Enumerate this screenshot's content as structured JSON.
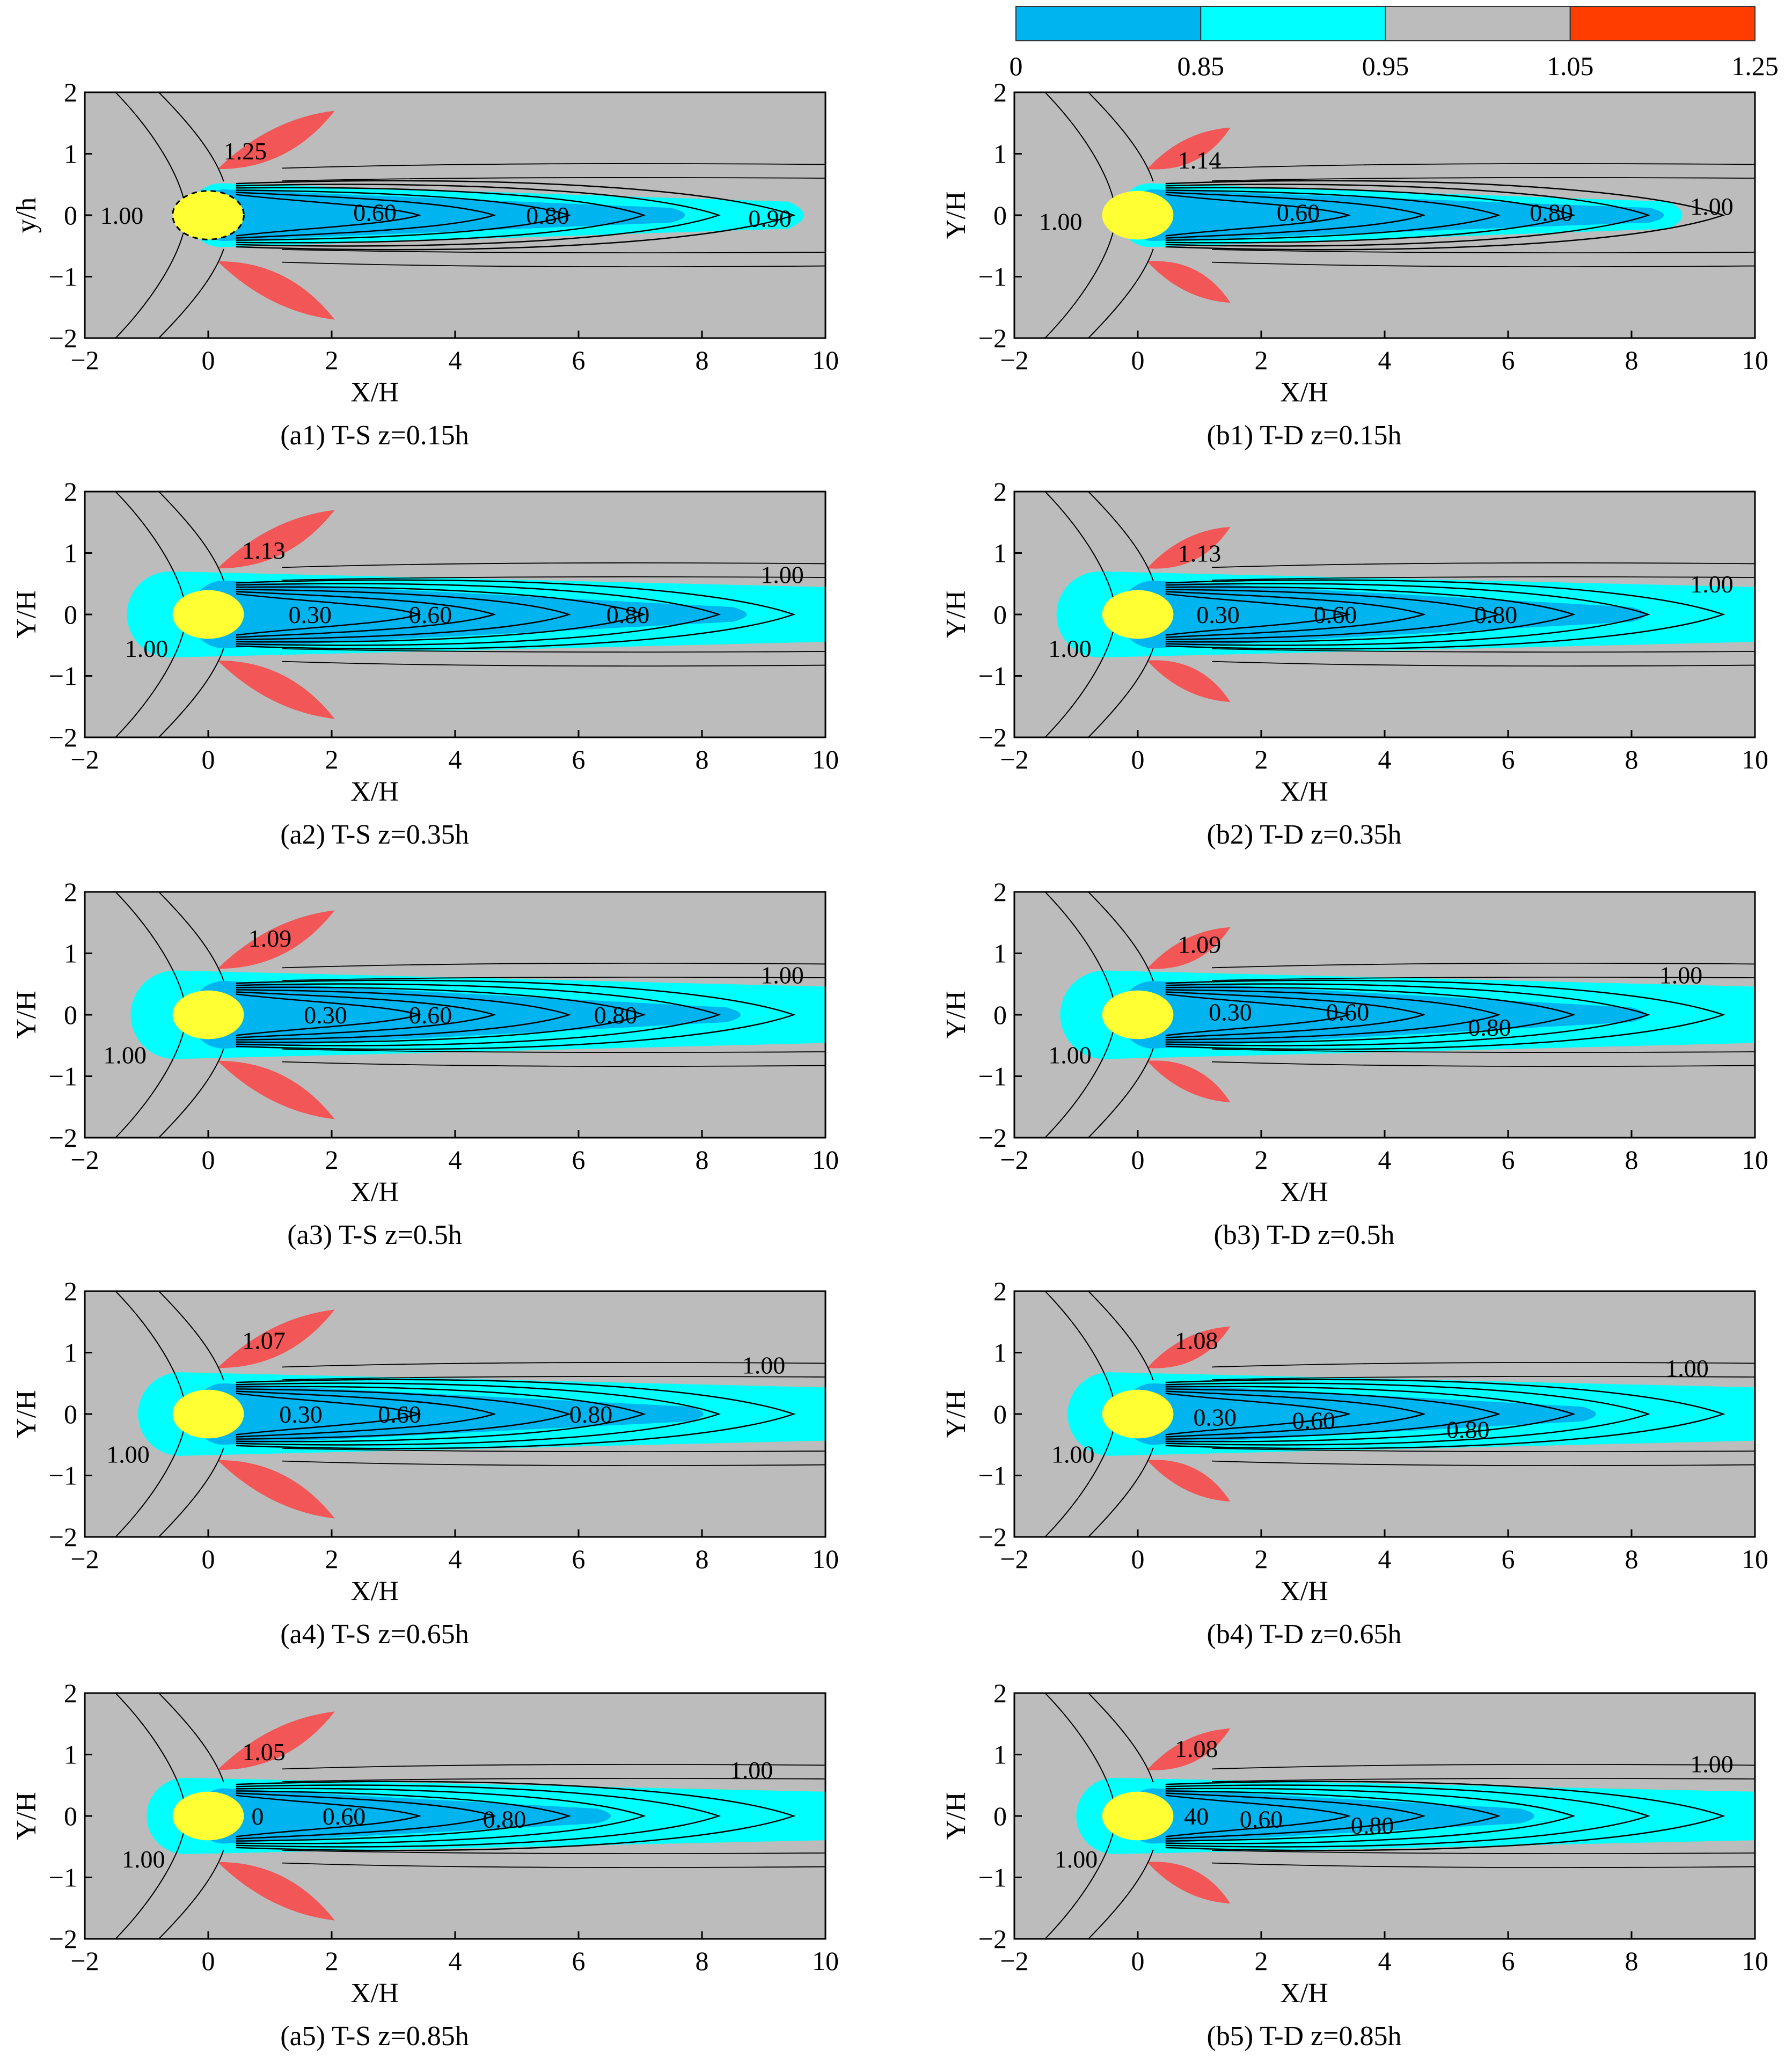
{
  "figure": {
    "colorbar": {
      "ticks": [
        "0",
        "0.85",
        "0.95",
        "1.05",
        "1.25"
      ],
      "bins": [
        {
          "from": 0,
          "to": 0.85,
          "color": "#00b4f0"
        },
        {
          "from": 0.85,
          "to": 0.95,
          "color": "#00ffff"
        },
        {
          "from": 0.95,
          "to": 1.05,
          "color": "#bcbcbc"
        },
        {
          "from": 1.05,
          "to": 1.25,
          "color": "#ff3d00"
        }
      ]
    },
    "colors": {
      "background": "#bcbcbc",
      "deficit_core": "#00b4f0",
      "deficit_edge": "#00ffff",
      "speedup": "#f25656",
      "cylinder": "#ffff33",
      "contour": "#000000"
    }
  },
  "chart_data": [
    {
      "type": "heatmap",
      "id": "a1",
      "title": "(a1) T-S z=0.15h",
      "xlabel": "X/H",
      "ylabel": "y/h",
      "xlim": [
        -2,
        10
      ],
      "ylim": [
        -2,
        2
      ],
      "xticks": [
        "-2",
        "0",
        "2",
        "4",
        "6",
        "8",
        "10"
      ],
      "yticks": [
        "2",
        "1",
        "0",
        "-1",
        "-2"
      ],
      "cylinder": {
        "x": 0,
        "y": 0,
        "radius": 0.55
      },
      "annotations": [
        {
          "text": "1.25",
          "x": 0.6,
          "y": 1.05
        },
        {
          "text": "1.00",
          "x": -1.4,
          "y": 0
        },
        {
          "text": "0.60",
          "x": 2.7,
          "y": 0.05
        },
        {
          "text": "0.80",
          "x": 5.5,
          "y": 0
        },
        {
          "text": "0.90",
          "x": 9.1,
          "y": -0.05
        }
      ]
    },
    {
      "type": "heatmap",
      "id": "b1",
      "title": "(b1) T-D z=0.15h",
      "xlabel": "X/H",
      "ylabel": "Y/H",
      "xlim": [
        -2,
        10
      ],
      "ylim": [
        -2,
        2
      ],
      "xticks": [
        "-2",
        "0",
        "2",
        "4",
        "6",
        "8",
        "10"
      ],
      "yticks": [
        "2",
        "1",
        "0",
        "-1",
        "-2"
      ],
      "cylinder": {
        "x": 0,
        "y": 0,
        "radius": 0.55
      },
      "annotations": [
        {
          "text": "1.14",
          "x": 1.0,
          "y": 0.9
        },
        {
          "text": "1.00",
          "x": -1.25,
          "y": -0.1
        },
        {
          "text": "0.60",
          "x": 2.6,
          "y": 0.05
        },
        {
          "text": "0.80",
          "x": 6.7,
          "y": 0.05
        },
        {
          "text": "1.00",
          "x": 9.3,
          "y": 0.15
        }
      ]
    },
    {
      "type": "heatmap",
      "id": "a2",
      "title": "(a2) T-S z=0.35h",
      "xlabel": "X/H",
      "ylabel": "Y/H",
      "xlim": [
        -2,
        10
      ],
      "ylim": [
        -2,
        2
      ],
      "xticks": [
        "-2",
        "0",
        "2",
        "4",
        "6",
        "8",
        "10"
      ],
      "yticks": [
        "2",
        "1",
        "0",
        "-1",
        "-2"
      ],
      "cylinder": {
        "x": 0,
        "y": 0,
        "radius": 0.55
      },
      "annotations": [
        {
          "text": "1.13",
          "x": 0.9,
          "y": 1.05
        },
        {
          "text": "1.00",
          "x": 9.3,
          "y": 0.65
        },
        {
          "text": "1.00",
          "x": -1.0,
          "y": -0.55
        },
        {
          "text": "0.30",
          "x": 1.65,
          "y": 0
        },
        {
          "text": "0.60",
          "x": 3.6,
          "y": 0
        },
        {
          "text": "0.80",
          "x": 6.8,
          "y": 0
        }
      ]
    },
    {
      "type": "heatmap",
      "id": "b2",
      "title": "(b2) T-D z=0.35h",
      "xlabel": "X/H",
      "ylabel": "Y/H",
      "xlim": [
        -2,
        10
      ],
      "ylim": [
        -2,
        2
      ],
      "xticks": [
        "-2",
        "0",
        "2",
        "4",
        "6",
        "8",
        "10"
      ],
      "yticks": [
        "2",
        "1",
        "0",
        "-1",
        "-2"
      ],
      "cylinder": {
        "x": 0,
        "y": 0,
        "radius": 0.55
      },
      "annotations": [
        {
          "text": "1.13",
          "x": 1.0,
          "y": 1.0
        },
        {
          "text": "1.00",
          "x": 9.3,
          "y": 0.5
        },
        {
          "text": "1.00",
          "x": -1.1,
          "y": -0.55
        },
        {
          "text": "0.30",
          "x": 1.3,
          "y": 0
        },
        {
          "text": "0.60",
          "x": 3.2,
          "y": 0
        },
        {
          "text": "0.80",
          "x": 5.8,
          "y": 0
        }
      ]
    },
    {
      "type": "heatmap",
      "id": "a3",
      "title": "(a3) T-S z=0.5h",
      "xlabel": "X/H",
      "ylabel": "Y/H",
      "xlim": [
        -2,
        10
      ],
      "ylim": [
        -2,
        2
      ],
      "xticks": [
        "-2",
        "0",
        "2",
        "4",
        "6",
        "8",
        "10"
      ],
      "yticks": [
        "2",
        "1",
        "0",
        "-1",
        "-2"
      ],
      "cylinder": {
        "x": 0,
        "y": 0,
        "radius": 0.55
      },
      "annotations": [
        {
          "text": "1.09",
          "x": 1.0,
          "y": 1.25
        },
        {
          "text": "1.00",
          "x": 9.3,
          "y": 0.65
        },
        {
          "text": "1.00",
          "x": -1.35,
          "y": -0.65
        },
        {
          "text": "0.30",
          "x": 1.9,
          "y": 0
        },
        {
          "text": "0.60",
          "x": 3.6,
          "y": 0
        },
        {
          "text": "0.80",
          "x": 6.6,
          "y": 0
        }
      ]
    },
    {
      "type": "heatmap",
      "id": "b3",
      "title": "(b3) T-D z=0.5h",
      "xlabel": "X/H",
      "ylabel": "Y/H",
      "xlim": [
        -2,
        10
      ],
      "ylim": [
        -2,
        2
      ],
      "xticks": [
        "-2",
        "0",
        "2",
        "4",
        "6",
        "8",
        "10"
      ],
      "yticks": [
        "2",
        "1",
        "0",
        "-1",
        "-2"
      ],
      "cylinder": {
        "x": 0,
        "y": 0,
        "radius": 0.55
      },
      "annotations": [
        {
          "text": "1.09",
          "x": 1.0,
          "y": 1.15
        },
        {
          "text": "1.00",
          "x": 8.8,
          "y": 0.65
        },
        {
          "text": "1.00",
          "x": -1.1,
          "y": -0.65
        },
        {
          "text": "0.30",
          "x": 1.5,
          "y": 0.05
        },
        {
          "text": "0.60",
          "x": 3.4,
          "y": 0.05
        },
        {
          "text": "0.80",
          "x": 5.7,
          "y": -0.2
        }
      ]
    },
    {
      "type": "heatmap",
      "id": "a4",
      "title": "(a4) T-S z=0.65h",
      "xlabel": "X/H",
      "ylabel": "Y/H",
      "xlim": [
        -2,
        10
      ],
      "ylim": [
        -2,
        2
      ],
      "xticks": [
        "-2",
        "0",
        "2",
        "4",
        "6",
        "8",
        "10"
      ],
      "yticks": [
        "2",
        "1",
        "0",
        "-1",
        "-2"
      ],
      "cylinder": {
        "x": 0,
        "y": 0,
        "radius": 0.55
      },
      "annotations": [
        {
          "text": "1.07",
          "x": 0.9,
          "y": 1.2
        },
        {
          "text": "1.00",
          "x": 9.0,
          "y": 0.8
        },
        {
          "text": "1.00",
          "x": -1.3,
          "y": -0.65
        },
        {
          "text": "0.30",
          "x": 1.5,
          "y": 0
        },
        {
          "text": "0.60",
          "x": 3.1,
          "y": 0
        },
        {
          "text": "0.80",
          "x": 6.2,
          "y": 0
        }
      ]
    },
    {
      "type": "heatmap",
      "id": "b4",
      "title": "(b4) T-D z=0.65h",
      "xlabel": "X/H",
      "ylabel": "Y/H",
      "xlim": [
        -2,
        10
      ],
      "ylim": [
        -2,
        2
      ],
      "xticks": [
        "-2",
        "0",
        "2",
        "4",
        "6",
        "8",
        "10"
      ],
      "yticks": [
        "2",
        "1",
        "0",
        "-1",
        "-2"
      ],
      "cylinder": {
        "x": 0,
        "y": 0,
        "radius": 0.55
      },
      "annotations": [
        {
          "text": "1.08",
          "x": 0.95,
          "y": 1.2
        },
        {
          "text": "1.00",
          "x": 8.9,
          "y": 0.75
        },
        {
          "text": "1.00",
          "x": -1.05,
          "y": -0.65
        },
        {
          "text": "0.30",
          "x": 1.25,
          "y": -0.05
        },
        {
          "text": "0.60",
          "x": 2.85,
          "y": -0.1
        },
        {
          "text": "0.80",
          "x": 5.35,
          "y": -0.25
        }
      ]
    },
    {
      "type": "heatmap",
      "id": "a5",
      "title": "(a5) T-S z=0.85h",
      "xlabel": "X/H",
      "ylabel": "Y/H",
      "xlim": [
        -2,
        10
      ],
      "ylim": [
        -2,
        2
      ],
      "xticks": [
        "-2",
        "0",
        "2",
        "4",
        "6",
        "8",
        "10"
      ],
      "yticks": [
        "2",
        "1",
        "0",
        "-1",
        "-2"
      ],
      "cylinder": {
        "x": 0,
        "y": 0,
        "radius": 0.55
      },
      "annotations": [
        {
          "text": "1.05",
          "x": 0.9,
          "y": 1.05
        },
        {
          "text": "1.00",
          "x": 8.8,
          "y": 0.75
        },
        {
          "text": "1.00",
          "x": -1.05,
          "y": -0.7
        },
        {
          "text": "0",
          "x": 0.8,
          "y": 0
        },
        {
          "text": "0.60",
          "x": 2.2,
          "y": 0
        },
        {
          "text": "0.80",
          "x": 4.8,
          "y": -0.05
        }
      ]
    },
    {
      "type": "heatmap",
      "id": "b5",
      "title": "(b5) T-D z=0.85h",
      "xlabel": "X/H",
      "ylabel": "Y/H",
      "xlim": [
        -2,
        10
      ],
      "ylim": [
        -2,
        2
      ],
      "xticks": [
        "-2",
        "0",
        "2",
        "4",
        "6",
        "8",
        "10"
      ],
      "yticks": [
        "2",
        "1",
        "0",
        "-1",
        "-2"
      ],
      "cylinder": {
        "x": 0,
        "y": 0,
        "radius": 0.55
      },
      "annotations": [
        {
          "text": "1.08",
          "x": 0.95,
          "y": 1.1
        },
        {
          "text": "1.00",
          "x": 9.3,
          "y": 0.85
        },
        {
          "text": "1.00",
          "x": -1.0,
          "y": -0.7
        },
        {
          "text": "40",
          "x": 0.95,
          "y": 0
        },
        {
          "text": "0.60",
          "x": 2.0,
          "y": -0.05
        },
        {
          "text": "0.80",
          "x": 3.8,
          "y": -0.15
        }
      ]
    }
  ]
}
